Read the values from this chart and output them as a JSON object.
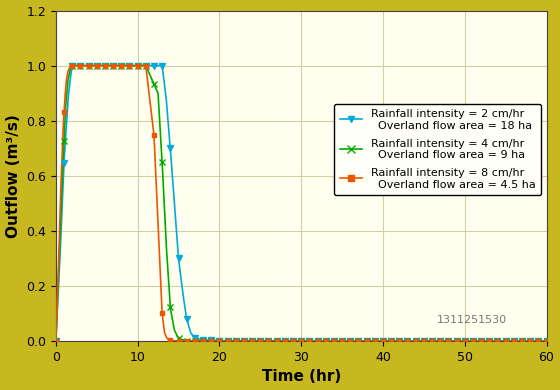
{
  "background_color": "#c8b820",
  "plot_bg_color": "#fffff0",
  "grid_color": "#d0d0a0",
  "xlabel": "Time (hr)",
  "ylabel": "Outflow (m³/s)",
  "xlim": [
    0,
    60
  ],
  "ylim": [
    0,
    1.2
  ],
  "xticks": [
    0,
    10,
    20,
    30,
    40,
    50,
    60
  ],
  "yticks": [
    0,
    0.2,
    0.4,
    0.6,
    0.8,
    1.0,
    1.2
  ],
  "watermark": "1311251530",
  "series": [
    {
      "label1": "Rainfall intensity = 2 cm/hr",
      "label2": "  Overland flow area = 18 ha",
      "color": "#00aadd",
      "marker": "v",
      "markersize": 4,
      "t_points": [
        0,
        0.5,
        1.0,
        1.5,
        1.8,
        2.0,
        2.2,
        3.0,
        5.0,
        8.0,
        11.0,
        13.0,
        13.5,
        14.0,
        14.5,
        15.0,
        15.5,
        16.0,
        16.5,
        17.0,
        18.0,
        20.0,
        60.0
      ],
      "y_points": [
        0,
        0.3,
        0.65,
        0.88,
        0.96,
        1.0,
        1.0,
        1.0,
        1.0,
        1.0,
        1.0,
        1.0,
        0.88,
        0.7,
        0.5,
        0.3,
        0.18,
        0.08,
        0.03,
        0.01,
        0.005,
        0.002,
        0.0
      ]
    },
    {
      "label1": "Rainfall intensity = 4 cm/hr",
      "label2": "  Overland flow area = 9 ha",
      "color": "#00aa00",
      "marker": "$\\mathbf{\\mp}$",
      "markersize": 5,
      "t_points": [
        0,
        0.4,
        0.8,
        1.2,
        1.5,
        1.8,
        2.0,
        2.2,
        3.0,
        5.0,
        8.0,
        11.0,
        12.5,
        13.0,
        13.5,
        14.0,
        14.5,
        15.0,
        15.5,
        16.0,
        17.0,
        60.0
      ],
      "y_points": [
        0,
        0.28,
        0.6,
        0.85,
        0.95,
        0.99,
        1.0,
        1.0,
        1.0,
        1.0,
        1.0,
        1.0,
        0.9,
        0.65,
        0.35,
        0.12,
        0.04,
        0.01,
        0.005,
        0.002,
        0.001,
        0.0
      ]
    },
    {
      "label1": "Rainfall intensity = 8 cm/hr",
      "label2": "  Overland flow area = 4.5 ha",
      "color": "#ee5500",
      "marker": "s",
      "markersize": 4,
      "t_points": [
        0,
        0.3,
        0.6,
        0.9,
        1.1,
        1.3,
        1.5,
        1.8,
        2.0,
        2.2,
        3.0,
        5.0,
        8.0,
        11.0,
        12.0,
        12.5,
        13.0,
        13.3,
        13.6,
        14.0,
        14.5,
        15.0,
        60.0
      ],
      "y_points": [
        0,
        0.25,
        0.55,
        0.78,
        0.88,
        0.95,
        0.98,
        1.0,
        1.0,
        1.0,
        1.0,
        1.0,
        1.0,
        1.0,
        0.75,
        0.42,
        0.1,
        0.03,
        0.01,
        0.003,
        0.001,
        0.0,
        0.0
      ]
    }
  ]
}
